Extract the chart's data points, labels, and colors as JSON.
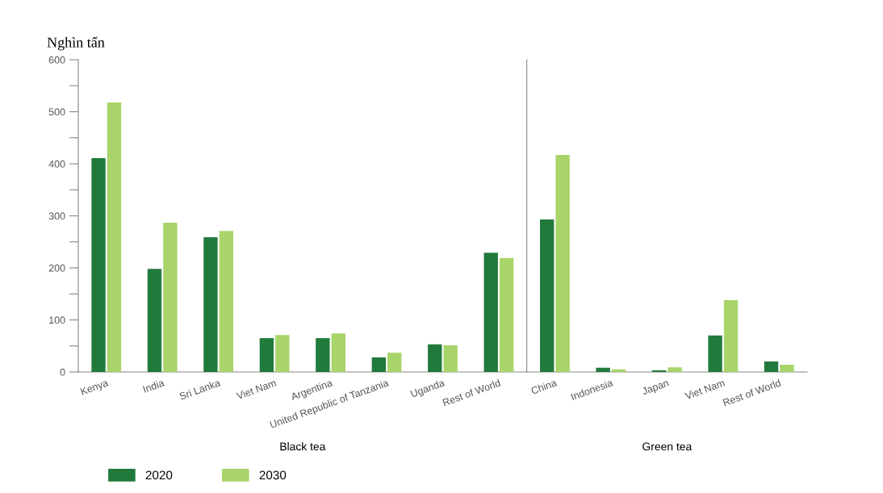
{
  "chart_data": [
    {
      "type": "bar",
      "ylabel": "Nghìn tấn",
      "xlabel": "Black tea",
      "categories": [
        "Kenya",
        "India",
        "Sri Lanka",
        "Viet Nam",
        "Argentina",
        "United Republic of Tanzania",
        "Uganda",
        "Rest of World"
      ],
      "series": [
        {
          "name": "2020",
          "color": "#217a3c",
          "values": [
            411,
            198,
            259,
            65,
            65,
            28,
            53,
            229
          ]
        },
        {
          "name": "2030",
          "color": "#a8d46a",
          "values": [
            518,
            287,
            271,
            71,
            74,
            37,
            51,
            219
          ]
        }
      ],
      "ylim": [
        0,
        600
      ],
      "yticks": [
        0,
        {
          "value": 50,
          "label": null
        },
        100,
        {
          "value": 150,
          "label": null
        },
        200,
        {
          "value": 250,
          "label": null
        },
        300,
        {
          "value": 350,
          "label": null
        },
        400,
        {
          "value": 450,
          "label": null
        },
        500,
        {
          "value": 550,
          "label": null
        },
        600
      ],
      "grid": false,
      "legend": "bottom"
    },
    {
      "type": "bar",
      "xlabel": "Green tea",
      "categories": [
        "China",
        "Indonesia",
        "Japan",
        "Viet Nam",
        "Rest of World"
      ],
      "series": [
        {
          "name": "2020",
          "color": "#217a3c",
          "values": [
            293,
            8,
            3,
            70,
            20
          ]
        },
        {
          "name": "2030",
          "color": "#a8d46a",
          "values": [
            417,
            5,
            9,
            138,
            14
          ]
        }
      ],
      "ylim": [
        0,
        600
      ],
      "tick_labels": "x",
      "grid": false
    }
  ]
}
